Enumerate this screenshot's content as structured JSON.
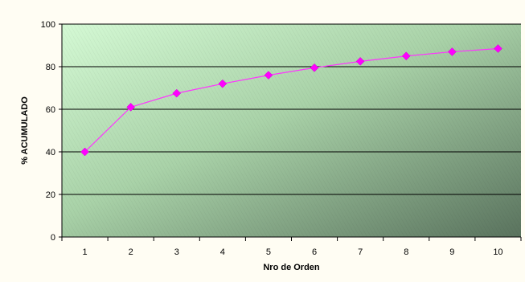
{
  "chart_data": {
    "type": "line",
    "xlabel": "Nro de Orden",
    "ylabel": "% ACUMULADO",
    "x": [
      1,
      2,
      3,
      4,
      5,
      6,
      7,
      8,
      9,
      10
    ],
    "ylim": [
      0,
      100
    ],
    "yticks": [
      0,
      20,
      40,
      60,
      80,
      100
    ],
    "series": [
      {
        "values": [
          40,
          61,
          67.5,
          72,
          76,
          79.5,
          82.5,
          85,
          87,
          88.5
        ]
      }
    ],
    "grid": "horizontal",
    "legend": "none",
    "colors": {
      "line": "#ff33ff",
      "marker": "#ff00ff",
      "gridline": "#000000",
      "plot_gradient_light": "#d4f9d4",
      "plot_gradient_dark": "#5a735e",
      "page_background": "#fffdf3"
    }
  }
}
